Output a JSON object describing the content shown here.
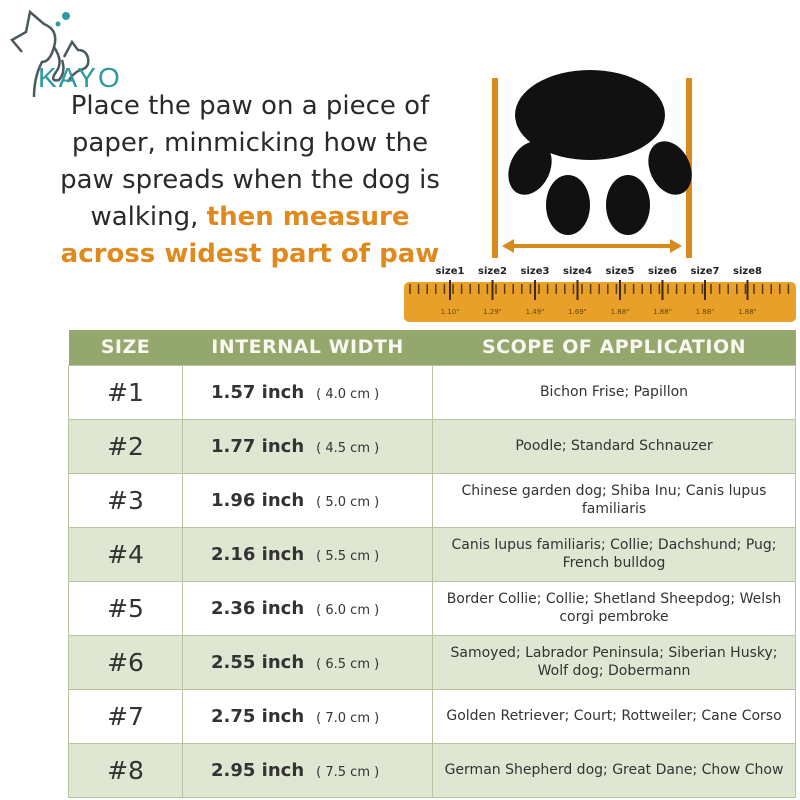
{
  "brand": {
    "name": "KAYO",
    "color": "#2c9aa0"
  },
  "instructions": {
    "text": "Place the paw on a piece of paper, minmicking how the paw spreads when the dog is walking,",
    "highlight": "then measure across widest part of paw",
    "highlight_color": "#e08a1e"
  },
  "ruler": {
    "sizes": [
      "size1",
      "size2",
      "size3",
      "size4",
      "size5",
      "size6",
      "size7",
      "size8"
    ],
    "values": [
      "1.10\"",
      "1.29\"",
      "1.49\"",
      "1.69\"",
      "1.88\"",
      "1.88\"",
      "1.88\"",
      "1.88\""
    ],
    "color": "#e8a028"
  },
  "table": {
    "headers": [
      "SIZE",
      "INTERNAL WIDTH",
      "SCOPE OF APPLICATION"
    ],
    "header_color": "#94a86e",
    "rows": [
      {
        "size": "#1",
        "width": "1.57 inch",
        "cm": "( 4.0 cm )",
        "scope": "Bichon Frise; Papillon"
      },
      {
        "size": "#2",
        "width": "1.77 inch",
        "cm": "( 4.5 cm )",
        "scope": "Poodle; Standard Schnauzer"
      },
      {
        "size": "#3",
        "width": "1.96 inch",
        "cm": "( 5.0 cm )",
        "scope": "Chinese garden dog; Shiba Inu; Canis lupus familiaris"
      },
      {
        "size": "#4",
        "width": "2.16 inch",
        "cm": "( 5.5 cm )",
        "scope": "Canis lupus familiaris; Collie; Dachshund; Pug; French bulldog"
      },
      {
        "size": "#5",
        "width": "2.36 inch",
        "cm": "( 6.0 cm )",
        "scope": "Border Collie; Collie; Shetland Sheepdog; Welsh corgi pembroke"
      },
      {
        "size": "#6",
        "width": "2.55 inch",
        "cm": "( 6.5 cm )",
        "scope": "Samoyed; Labrador Peninsula; Siberian Husky; Wolf dog; Dobermann"
      },
      {
        "size": "#7",
        "width": "2.75 inch",
        "cm": "( 7.0 cm )",
        "scope": "Golden Retriever; Court; Rottweiler; Cane Corso"
      },
      {
        "size": "#8",
        "width": "2.95 inch",
        "cm": "( 7.5 cm )",
        "scope": "German Shepherd dog; Great Dane; Chow Chow"
      }
    ]
  }
}
